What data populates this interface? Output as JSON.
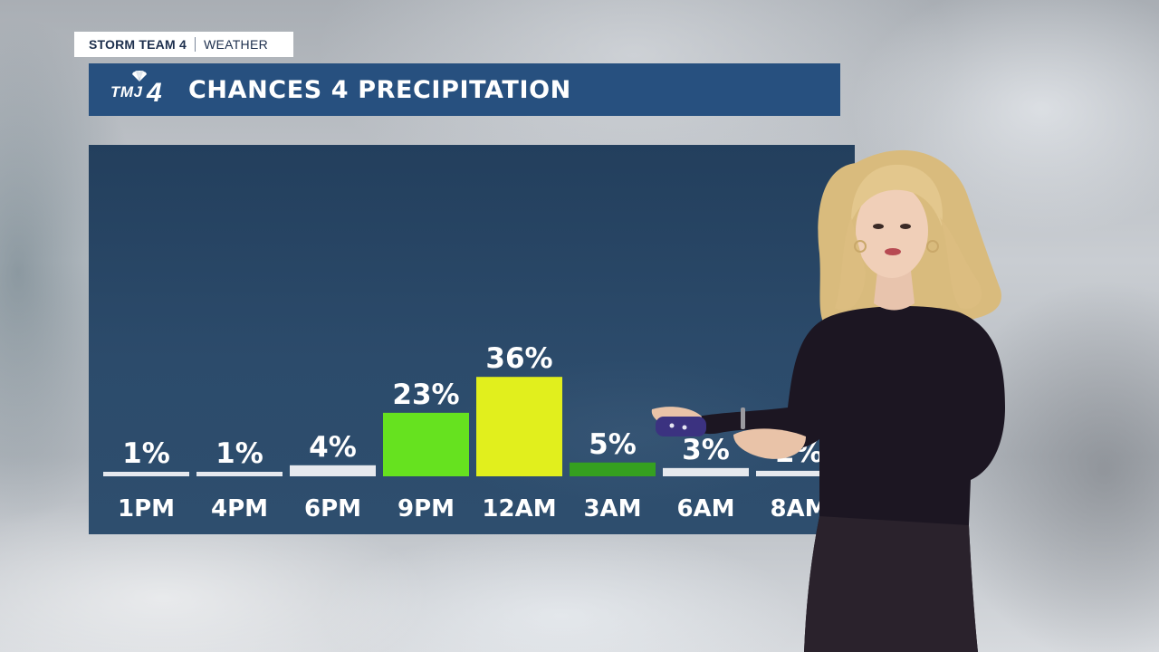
{
  "brand": {
    "team": "STORM TEAM 4",
    "section": "WEATHER"
  },
  "station": {
    "logo_text": "TMJ",
    "logo_number": "4"
  },
  "header": {
    "title": "CHANCES 4 PRECIPITATION"
  },
  "chart_data": {
    "type": "bar",
    "categories": [
      "1PM",
      "4PM",
      "6PM",
      "9PM",
      "12AM",
      "3AM",
      "6AM",
      "8AM"
    ],
    "values": [
      1,
      1,
      4,
      23,
      36,
      5,
      3,
      2
    ],
    "value_labels": [
      "1%",
      "1%",
      "4%",
      "23%",
      "36%",
      "5%",
      "3%",
      "2%"
    ],
    "colors": [
      "#e6e9ee",
      "#e6e9ee",
      "#e6e9ee",
      "#66e21f",
      "#e1ef1d",
      "#35a020",
      "#e6e9ee",
      "#e6e9ee"
    ],
    "unit": "%",
    "ylim": [
      0,
      40
    ],
    "grid": false,
    "legend": "none"
  }
}
